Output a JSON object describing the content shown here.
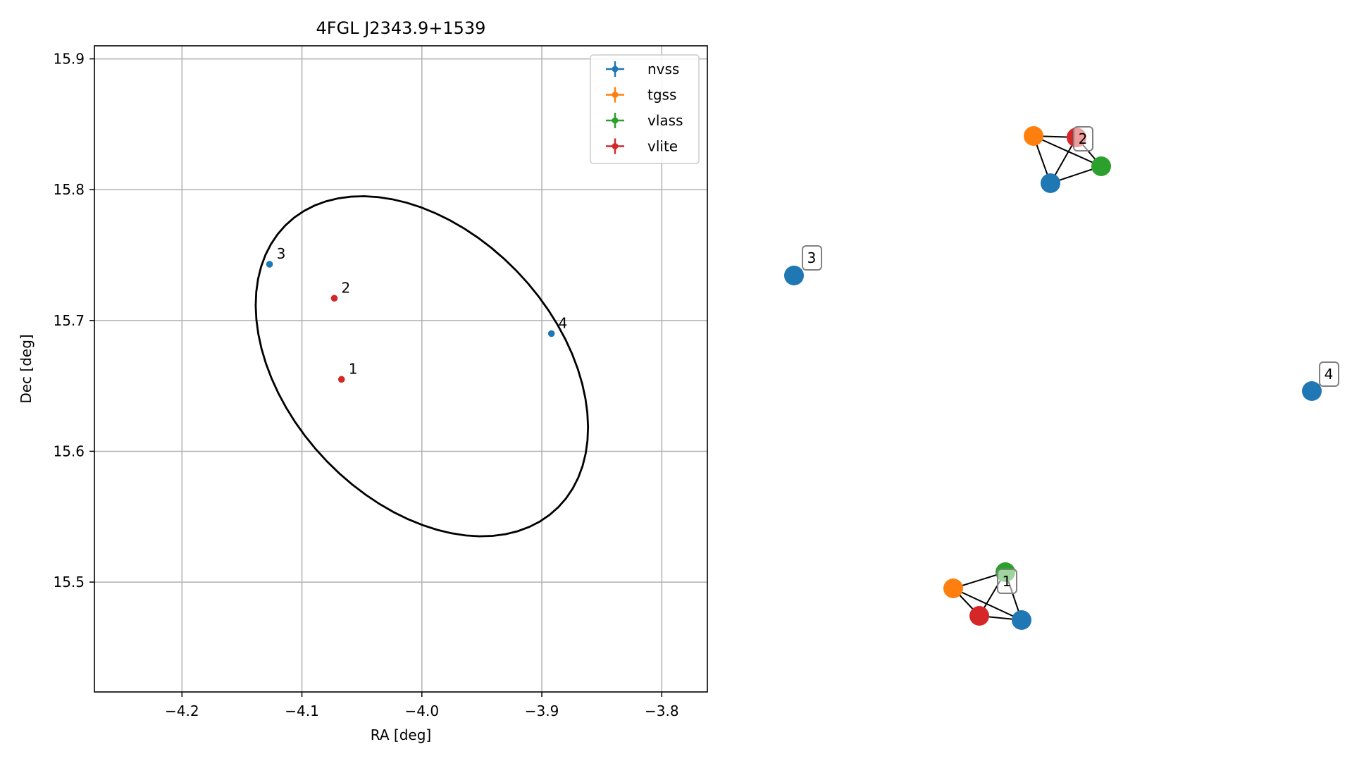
{
  "chart_data": [
    {
      "type": "scatter",
      "title": "4FGL J2343.9+1539",
      "xlabel": "RA [deg]",
      "ylabel": "Dec [deg]",
      "xlim": [
        -4.273,
        -3.762
      ],
      "ylim": [
        15.416,
        15.91
      ],
      "xticks": [
        -4.2,
        -4.1,
        -4.0,
        -3.9,
        -3.8
      ],
      "xtick_labels": [
        "−4.2",
        "−4.1",
        "−4.0",
        "−3.9",
        "−3.8"
      ],
      "yticks": [
        15.5,
        15.6,
        15.7,
        15.8,
        15.9
      ],
      "ytick_labels": [
        "15.5",
        "15.6",
        "15.7",
        "15.8",
        "15.9"
      ],
      "grid": true,
      "legend_position": "upper-right",
      "series": [
        {
          "name": "nvss",
          "color": "#1f77b4",
          "points": [
            {
              "x": -4.127,
              "y": 15.743,
              "label": "3"
            },
            {
              "x": -3.892,
              "y": 15.69,
              "label": "4"
            }
          ]
        },
        {
          "name": "tgss",
          "color": "#ff7f0e",
          "points": []
        },
        {
          "name": "vlass",
          "color": "#2ca02c",
          "points": []
        },
        {
          "name": "vlite",
          "color": "#d62728",
          "points": [
            {
              "x": -4.073,
              "y": 15.717,
              "label": "2"
            },
            {
              "x": -4.067,
              "y": 15.655,
              "label": "1"
            }
          ]
        }
      ],
      "ellipse": {
        "center": [
          -4.0,
          15.665
        ],
        "semi_major": 0.157,
        "semi_minor": 0.107,
        "angle_deg": -40,
        "color": "#000000"
      }
    },
    {
      "type": "network",
      "groups": [
        {
          "label": "1",
          "nodes": [
            {
              "color": "#2ca02c"
            },
            {
              "color": "#ff7f0e"
            },
            {
              "color": "#d62728"
            },
            {
              "color": "#1f77b4"
            }
          ]
        },
        {
          "label": "2",
          "nodes": [
            {
              "color": "#ff7f0e"
            },
            {
              "color": "#d62728"
            },
            {
              "color": "#2ca02c"
            },
            {
              "color": "#1f77b4"
            }
          ]
        },
        {
          "label": "3",
          "nodes": [
            {
              "color": "#1f77b4"
            }
          ]
        },
        {
          "label": "4",
          "nodes": [
            {
              "color": "#1f77b4"
            }
          ]
        }
      ]
    }
  ]
}
